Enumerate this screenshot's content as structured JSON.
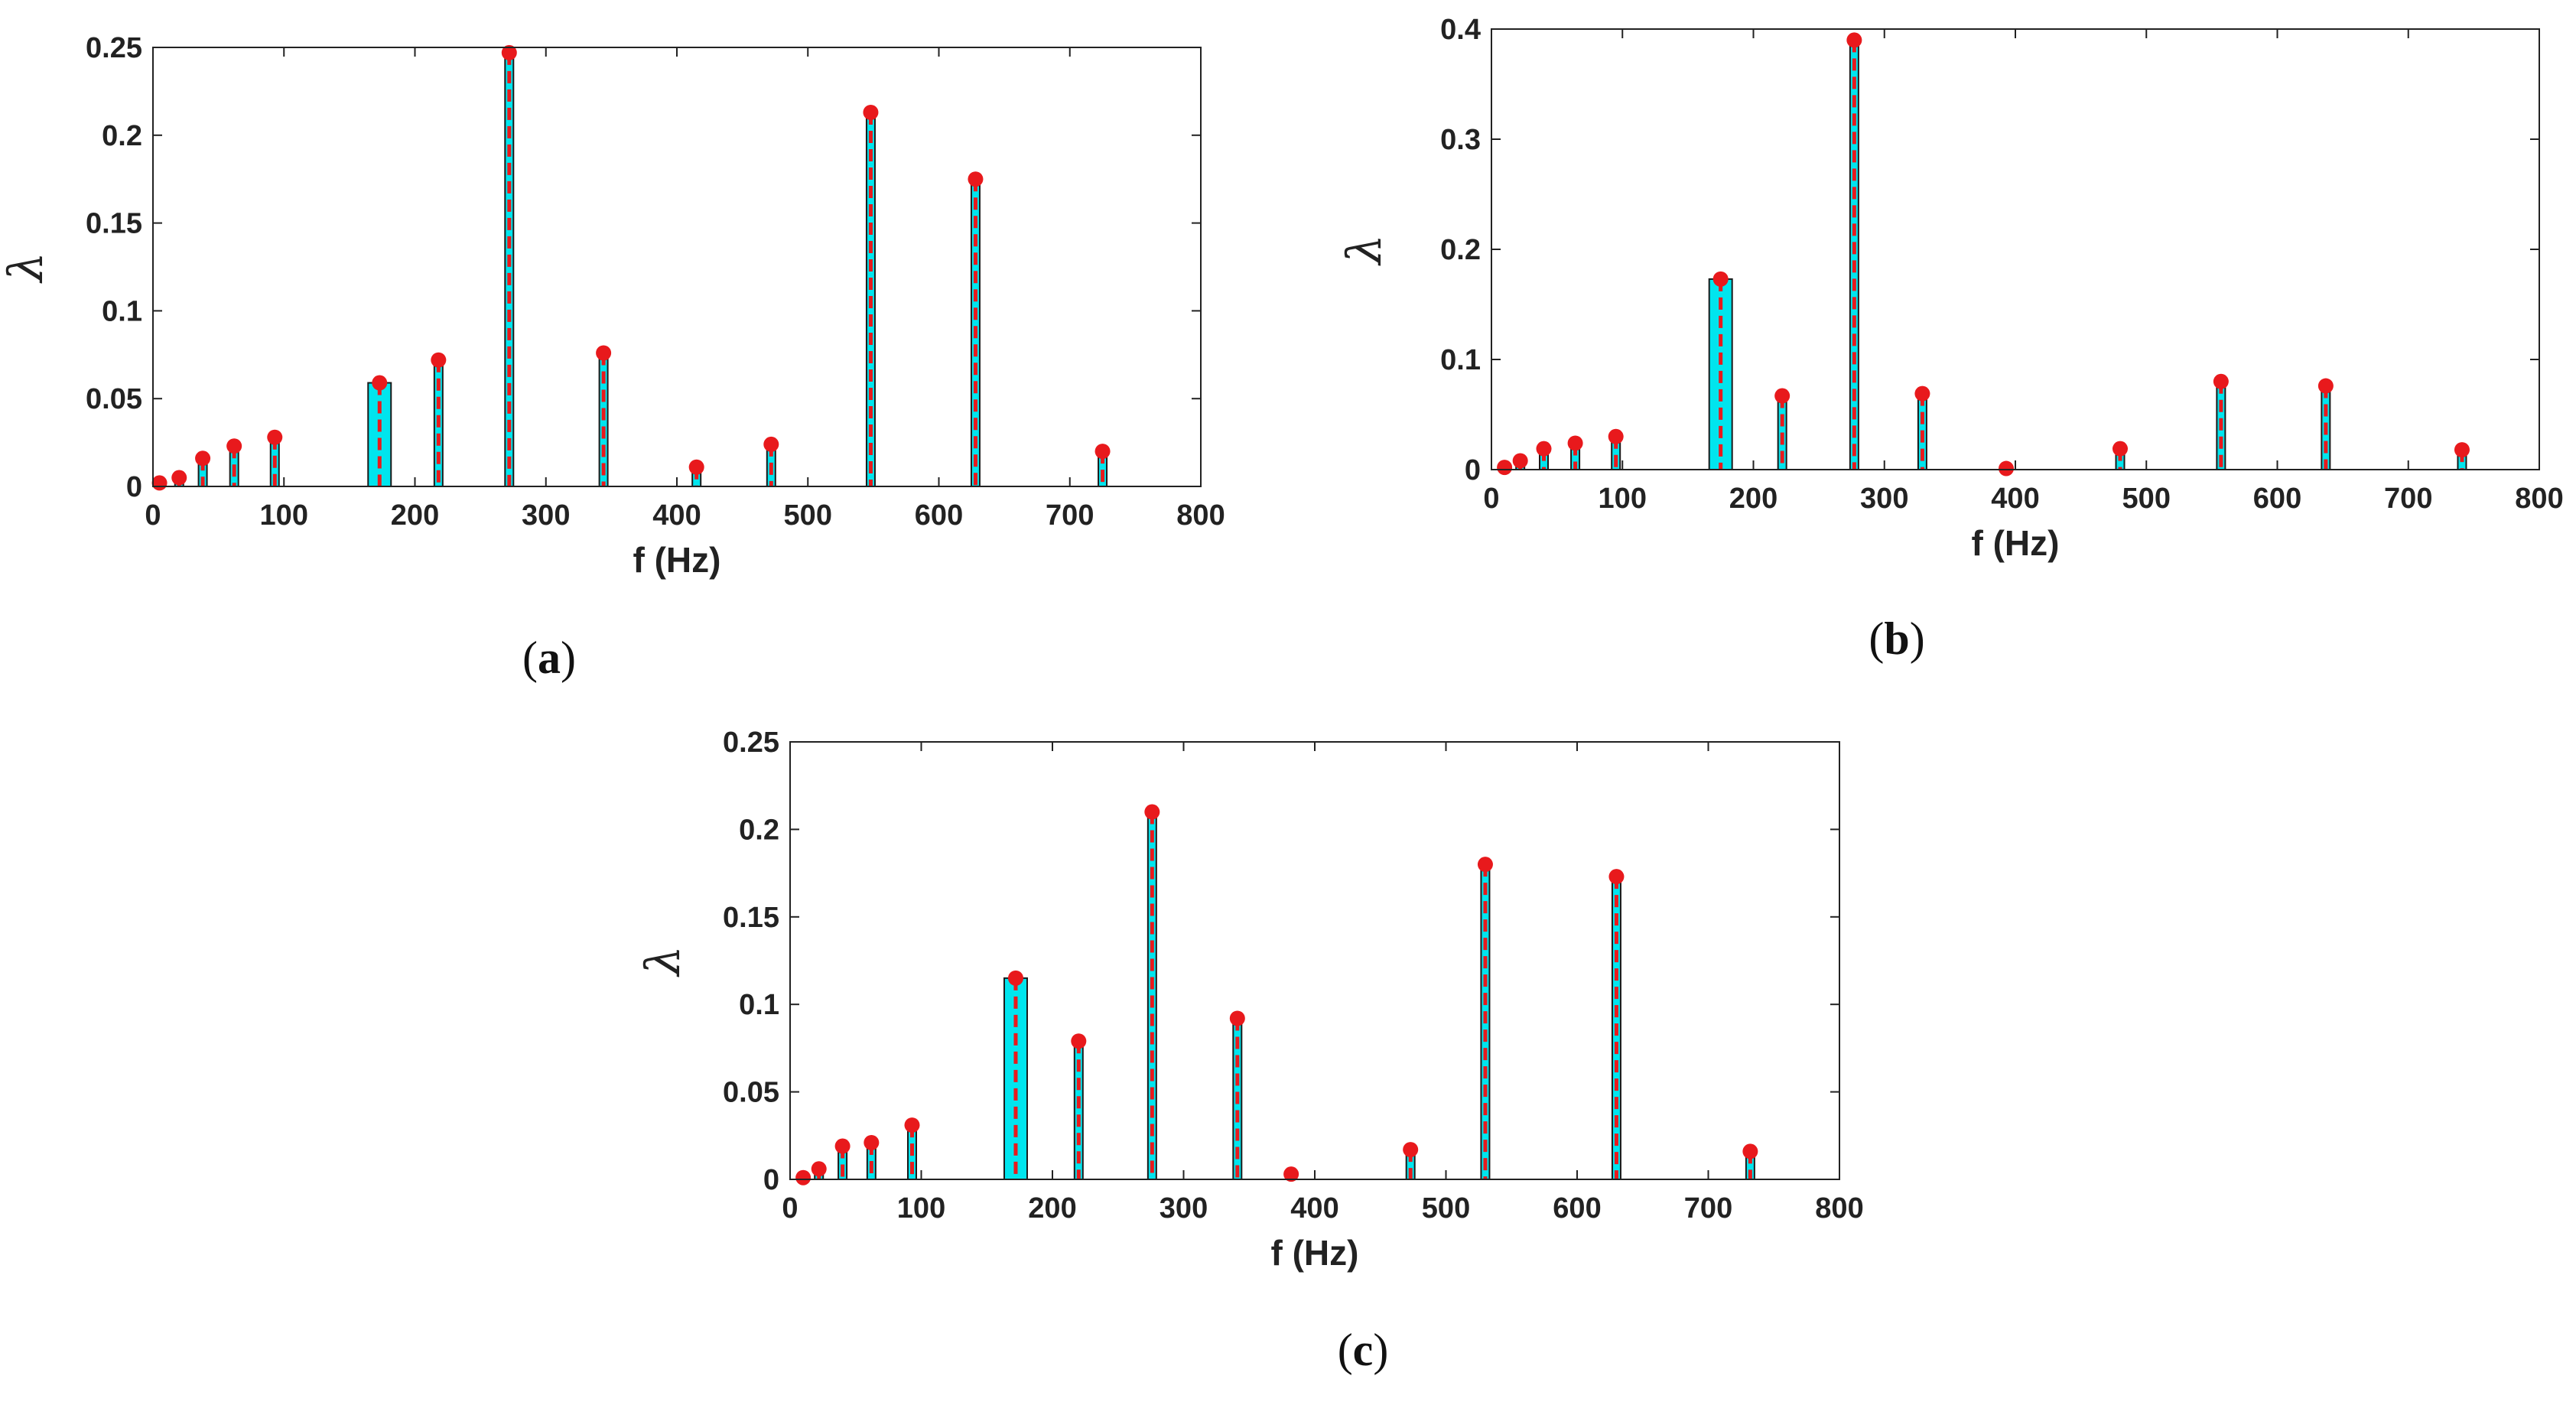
{
  "chart_data": [
    {
      "type": "bar",
      "panel_label": "a",
      "xlabel": "f (Hz)",
      "ylabel": "λ",
      "xlim": [
        0,
        800
      ],
      "ylim": [
        0,
        0.25
      ],
      "xticks": [
        0,
        100,
        200,
        300,
        400,
        500,
        600,
        700,
        800
      ],
      "yticks": [
        0,
        0.05,
        0.1,
        0.15,
        0.2,
        0.25
      ],
      "bars": [
        {
          "f": 5,
          "lambda": 0.002
        },
        {
          "f": 20,
          "lambda": 0.005
        },
        {
          "f": 38,
          "lambda": 0.016
        },
        {
          "f": 62,
          "lambda": 0.023
        },
        {
          "f": 93,
          "lambda": 0.028
        },
        {
          "f": 173,
          "lambda": 0.059,
          "wide": true
        },
        {
          "f": 218,
          "lambda": 0.072
        },
        {
          "f": 272,
          "lambda": 0.247
        },
        {
          "f": 344,
          "lambda": 0.076
        },
        {
          "f": 415,
          "lambda": 0.011
        },
        {
          "f": 472,
          "lambda": 0.024
        },
        {
          "f": 548,
          "lambda": 0.213
        },
        {
          "f": 628,
          "lambda": 0.175
        },
        {
          "f": 725,
          "lambda": 0.02
        }
      ]
    },
    {
      "type": "bar",
      "panel_label": "b",
      "xlabel": "f (Hz)",
      "ylabel": "λ",
      "xlim": [
        0,
        800
      ],
      "ylim": [
        0,
        0.4
      ],
      "xticks": [
        0,
        100,
        200,
        300,
        400,
        500,
        600,
        700,
        800
      ],
      "yticks": [
        0,
        0.1,
        0.2,
        0.3,
        0.4
      ],
      "bars": [
        {
          "f": 10,
          "lambda": 0.002
        },
        {
          "f": 22,
          "lambda": 0.008
        },
        {
          "f": 40,
          "lambda": 0.019
        },
        {
          "f": 64,
          "lambda": 0.024
        },
        {
          "f": 95,
          "lambda": 0.03
        },
        {
          "f": 175,
          "lambda": 0.173,
          "wide": true
        },
        {
          "f": 222,
          "lambda": 0.067
        },
        {
          "f": 277,
          "lambda": 0.39
        },
        {
          "f": 329,
          "lambda": 0.069
        },
        {
          "f": 393,
          "lambda": 0.001
        },
        {
          "f": 480,
          "lambda": 0.019
        },
        {
          "f": 557,
          "lambda": 0.08
        },
        {
          "f": 637,
          "lambda": 0.076
        },
        {
          "f": 741,
          "lambda": 0.018
        }
      ]
    },
    {
      "type": "bar",
      "panel_label": "c",
      "xlabel": "f (Hz)",
      "ylabel": "λ",
      "xlim": [
        0,
        800
      ],
      "ylim": [
        0,
        0.25
      ],
      "xticks": [
        0,
        100,
        200,
        300,
        400,
        500,
        600,
        700,
        800
      ],
      "yticks": [
        0,
        0.05,
        0.1,
        0.15,
        0.2,
        0.25
      ],
      "bars": [
        {
          "f": 10,
          "lambda": 0.001
        },
        {
          "f": 22,
          "lambda": 0.006
        },
        {
          "f": 40,
          "lambda": 0.019
        },
        {
          "f": 62,
          "lambda": 0.021
        },
        {
          "f": 93,
          "lambda": 0.031
        },
        {
          "f": 172,
          "lambda": 0.115,
          "wide": true
        },
        {
          "f": 220,
          "lambda": 0.079
        },
        {
          "f": 276,
          "lambda": 0.21
        },
        {
          "f": 341,
          "lambda": 0.092
        },
        {
          "f": 382,
          "lambda": 0.003
        },
        {
          "f": 473,
          "lambda": 0.017
        },
        {
          "f": 530,
          "lambda": 0.18
        },
        {
          "f": 630,
          "lambda": 0.173
        },
        {
          "f": 732,
          "lambda": 0.016
        }
      ]
    }
  ],
  "colors": {
    "bar_fill": "#00e5ee",
    "stem": "#e8191c",
    "marker": "#e8191c",
    "axis": "#222222"
  }
}
